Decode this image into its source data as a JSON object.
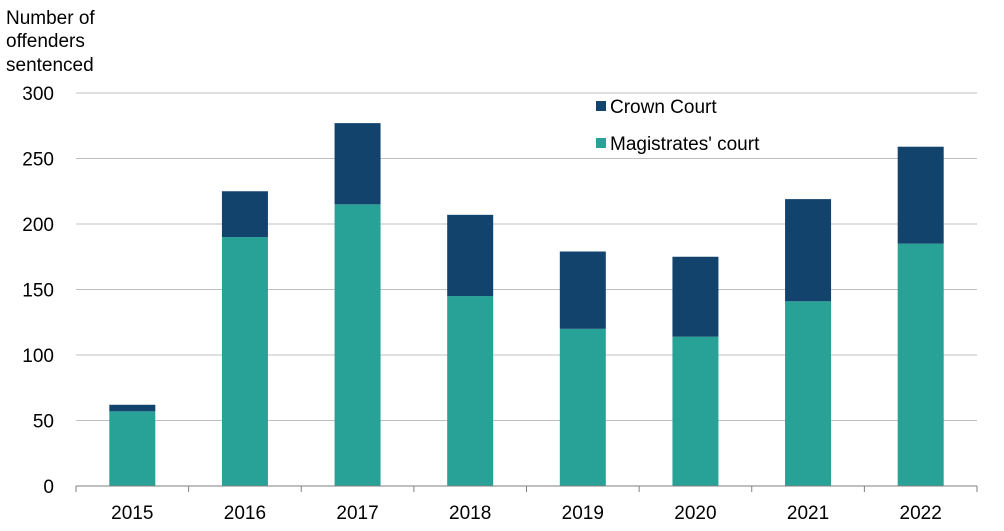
{
  "chart_data": {
    "type": "bar",
    "stacked": true,
    "title": "",
    "ylabel_lines": [
      "Number  of",
      "offenders",
      "sentenced"
    ],
    "xlabel": "",
    "categories": [
      "2015",
      "2016",
      "2017",
      "2018",
      "2019",
      "2020",
      "2021",
      "2022"
    ],
    "series": [
      {
        "name": "Magistrates' court",
        "color": "#28a197",
        "values": [
          57,
          190,
          215,
          145,
          120,
          114,
          141,
          185
        ]
      },
      {
        "name": "Crown Court",
        "color": "#12436d",
        "values": [
          5,
          35,
          62,
          62,
          59,
          61,
          78,
          74
        ]
      }
    ],
    "legend_order": [
      "Crown Court",
      "Magistrates' court"
    ],
    "ylim": [
      0,
      300
    ],
    "yticks": [
      "0",
      "50",
      "100",
      "150",
      "200",
      "250",
      "300"
    ],
    "grid": true,
    "gridColor": "#bfbfbf",
    "axisColor": "#7f7f7f",
    "legend_position": "top-right"
  }
}
